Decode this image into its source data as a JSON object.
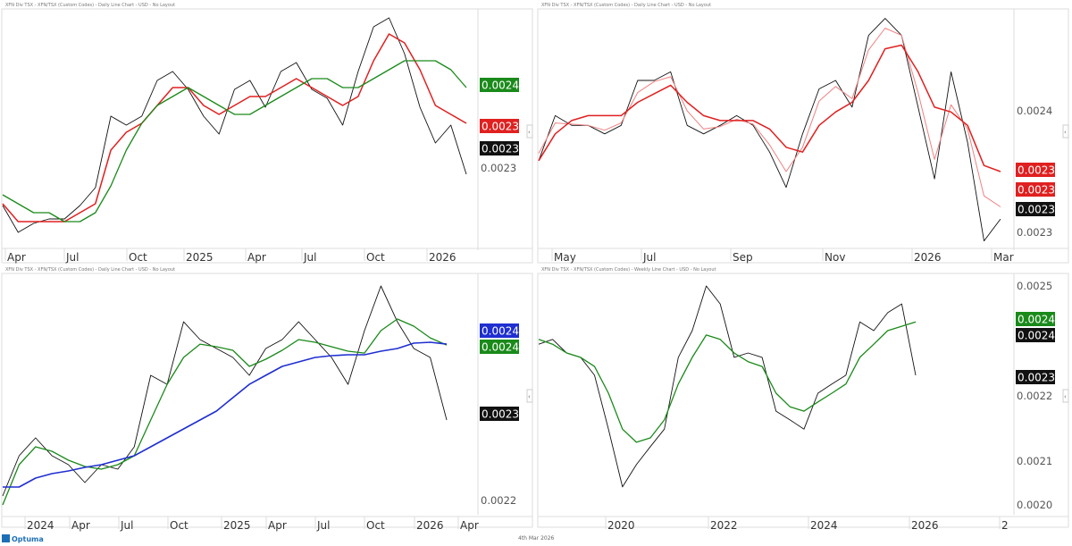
{
  "footer": {
    "brand": "Optuma",
    "date": "4th Mar 2026"
  },
  "colors": {
    "price": "#111111",
    "green": "#1a8a1a",
    "red": "#e02020",
    "light_red": "#f08080",
    "blue": "#1f2fd0"
  },
  "chart_data": [
    {
      "type": "line",
      "title": "XFN Div TSX - XFN/TSX (Custom Codes) - Daily Line Chart - USD - No Layout",
      "x_ticks": [
        "Apr",
        "Jul",
        "Oct",
        "2025",
        "Apr",
        "Jul",
        "Oct",
        "2026"
      ],
      "y_ticks": [
        "0.0023"
      ],
      "ylim": [
        0.00221,
        0.002476
      ],
      "series": [
        {
          "color": "price",
          "values": [
            0.002258,
            0.002228,
            0.002238,
            0.002243,
            0.002243,
            0.002258,
            0.002278,
            0.002358,
            0.002348,
            0.002358,
            0.002398,
            0.002408,
            0.002388,
            0.002358,
            0.002338,
            0.002388,
            0.002398,
            0.002368,
            0.002408,
            0.002418,
            0.002388,
            0.002378,
            0.002348,
            0.002408,
            0.002458,
            0.002468,
            0.002428,
            0.002368,
            0.002328,
            0.002348,
            0.002293
          ]
        },
        {
          "color": "red",
          "values": [
            0.00226,
            0.00224,
            0.00224,
            0.00224,
            0.00224,
            0.00225,
            0.00226,
            0.00232,
            0.00234,
            0.00235,
            0.00237,
            0.00239,
            0.00239,
            0.00237,
            0.00236,
            0.00237,
            0.00238,
            0.00238,
            0.00239,
            0.0024,
            0.00239,
            0.00238,
            0.00237,
            0.00238,
            0.00242,
            0.00245,
            0.00244,
            0.00241,
            0.00237,
            0.00236,
            0.00235
          ]
        },
        {
          "color": "green",
          "values": [
            0.00227,
            0.00226,
            0.00225,
            0.00225,
            0.00224,
            0.00224,
            0.00225,
            0.00228,
            0.00232,
            0.00235,
            0.00237,
            0.00238,
            0.00239,
            0.00238,
            0.00237,
            0.00236,
            0.00236,
            0.00237,
            0.00238,
            0.00239,
            0.0024,
            0.0024,
            0.00239,
            0.00239,
            0.0024,
            0.00241,
            0.00242,
            0.00242,
            0.00242,
            0.00241,
            0.00239
          ]
        }
      ],
      "value_labels": [
        {
          "text": "0.0024",
          "color": "green"
        },
        {
          "text": "0.0023",
          "color": "red"
        },
        {
          "text": "0.0023",
          "color": "price"
        }
      ]
    },
    {
      "type": "line",
      "title": "XFN Div TSX - XFN/TSX (Custom Codes) - Daily Line Chart - USD - No Layout",
      "x_ticks": [
        "May",
        "Jul",
        "Sep",
        "Nov",
        "2026",
        "Mar"
      ],
      "y_ticks": [
        "0.0024",
        "0.0023"
      ],
      "ylim": [
        0.0022868,
        0.0024823
      ],
      "series": [
        {
          "color": "price",
          "values": [
            0.002359,
            0.002396,
            0.002388,
            0.002388,
            0.002381,
            0.002388,
            0.002425,
            0.002425,
            0.002432,
            0.002388,
            0.002381,
            0.002388,
            0.002396,
            0.002388,
            0.002366,
            0.002337,
            0.002381,
            0.002418,
            0.002425,
            0.002403,
            0.002462,
            0.002476,
            0.002462,
            0.002403,
            0.002344,
            0.002432,
            0.002374,
            0.002293,
            0.002311
          ]
        },
        {
          "color": "light_red",
          "values": [
            0.002365,
            0.00239,
            0.002389,
            0.002388,
            0.002384,
            0.00239,
            0.002415,
            0.002424,
            0.002428,
            0.0024,
            0.002385,
            0.002387,
            0.002393,
            0.002389,
            0.002372,
            0.00235,
            0.00237,
            0.002408,
            0.00242,
            0.00241,
            0.00245,
            0.002468,
            0.002462,
            0.002415,
            0.00236,
            0.002405,
            0.002385,
            0.00233,
            0.002321
          ]
        },
        {
          "color": "red",
          "values": [
            0.002359,
            0.002381,
            0.002392,
            0.002396,
            0.002396,
            0.002396,
            0.002407,
            0.002414,
            0.002421,
            0.002407,
            0.002396,
            0.002392,
            0.002392,
            0.002392,
            0.002385,
            0.00237,
            0.002366,
            0.002388,
            0.002399,
            0.002407,
            0.002425,
            0.002451,
            0.002454,
            0.002432,
            0.002403,
            0.002399,
            0.002388,
            0.002355,
            0.00235
          ]
        }
      ],
      "value_labels": [
        {
          "text": "0.0023",
          "color": "red"
        },
        {
          "text": "0.0023",
          "color": "red"
        },
        {
          "text": "0.0023",
          "color": "price"
        }
      ]
    },
    {
      "type": "line",
      "title": "XFN Div TSX - XFN/TSX (Custom Codes) - Daily Line Chart - USD - No Layout",
      "x_ticks": [
        "2024",
        "Apr",
        "Jul",
        "Oct",
        "2025",
        "Apr",
        "Jul",
        "Oct",
        "2026",
        "Apr"
      ],
      "y_ticks": [
        "0.0022"
      ],
      "ylim": [
        0.00218,
        0.0024756
      ],
      "series": [
        {
          "color": "price",
          "values": [
            0.0022056,
            0.0022556,
            0.0022778,
            0.0022556,
            0.0022444,
            0.0022222,
            0.0022444,
            0.0022389,
            0.0022667,
            0.0023556,
            0.0023444,
            0.0024222,
            0.0024,
            0.0023889,
            0.0023778,
            0.0023556,
            0.0023889,
            0.0024,
            0.0024222,
            0.0024,
            0.0023778,
            0.0023444,
            0.0024111,
            0.0024667,
            0.0024222,
            0.0023889,
            0.0023778,
            0.0023
          ]
        },
        {
          "color": "green",
          "values": [
            0.0021944,
            0.0022444,
            0.0022667,
            0.0022611,
            0.00225,
            0.0022422,
            0.0022389,
            0.0022444,
            0.0022556,
            0.0023,
            0.0023444,
            0.0023778,
            0.0023944,
            0.0023911,
            0.0023867,
            0.0023667,
            0.0023756,
            0.0023867,
            0.0024,
            0.0023967,
            0.0023911,
            0.0023856,
            0.0023833,
            0.0024111,
            0.0024256,
            0.0024167,
            0.0024022,
            0.0023933
          ]
        },
        {
          "color": "blue",
          "values": [
            0.0022167,
            0.0022167,
            0.0022278,
            0.0022333,
            0.0022367,
            0.0022411,
            0.0022444,
            0.00225,
            0.0022556,
            0.0022667,
            0.0022778,
            0.0022889,
            0.0023,
            0.0023111,
            0.0023278,
            0.0023444,
            0.0023556,
            0.0023667,
            0.0023722,
            0.0023778,
            0.00238,
            0.0023811,
            0.0023811,
            0.0023856,
            0.0023889,
            0.0023956,
            0.0023967,
            0.0023944
          ]
        }
      ],
      "value_labels": [
        {
          "text": "0.0024",
          "color": "blue"
        },
        {
          "text": "0.0024",
          "color": "green"
        },
        {
          "text": "0.0023",
          "color": "price"
        }
      ]
    },
    {
      "type": "line",
      "title": "XFN Div TSX - XFN/TSX (Custom Codes) - Weekly Line Chart - USD - No Layout",
      "x_ticks": [
        "2020",
        "2022",
        "2024",
        "2026",
        "2"
      ],
      "y_ticks": [
        "0.0025",
        "0.0022",
        "0.0021",
        "0.0020"
      ],
      "ylim": [
        0.0019734,
        0.0025163
      ],
      "series": [
        {
          "color": "price",
          "values": [
            0.002367,
            0.002378,
            0.002347,
            0.002337,
            0.002296,
            0.002173,
            0.002041,
            0.002092,
            0.002133,
            0.002173,
            0.002337,
            0.002398,
            0.0025,
            0.002459,
            0.002337,
            0.002347,
            0.002337,
            0.002214,
            0.002194,
            0.002173,
            0.002255,
            0.002276,
            0.002296,
            0.002418,
            0.002398,
            0.002439,
            0.002459,
            0.002296
          ]
        },
        {
          "color": "green",
          "values": [
            0.002378,
            0.002367,
            0.002347,
            0.002337,
            0.002316,
            0.002255,
            0.002173,
            0.002143,
            0.002153,
            0.002194,
            0.002276,
            0.002337,
            0.002388,
            0.002378,
            0.002347,
            0.002327,
            0.002316,
            0.002255,
            0.002224,
            0.002214,
            0.002235,
            0.002255,
            0.002276,
            0.002337,
            0.002367,
            0.002398,
            0.002408,
            0.002418
          ]
        }
      ],
      "value_labels": [
        {
          "text": "0.0024",
          "color": "green"
        },
        {
          "text": "0.0024",
          "color": "price"
        },
        {
          "text": "0.0023",
          "color": "price"
        }
      ]
    }
  ]
}
